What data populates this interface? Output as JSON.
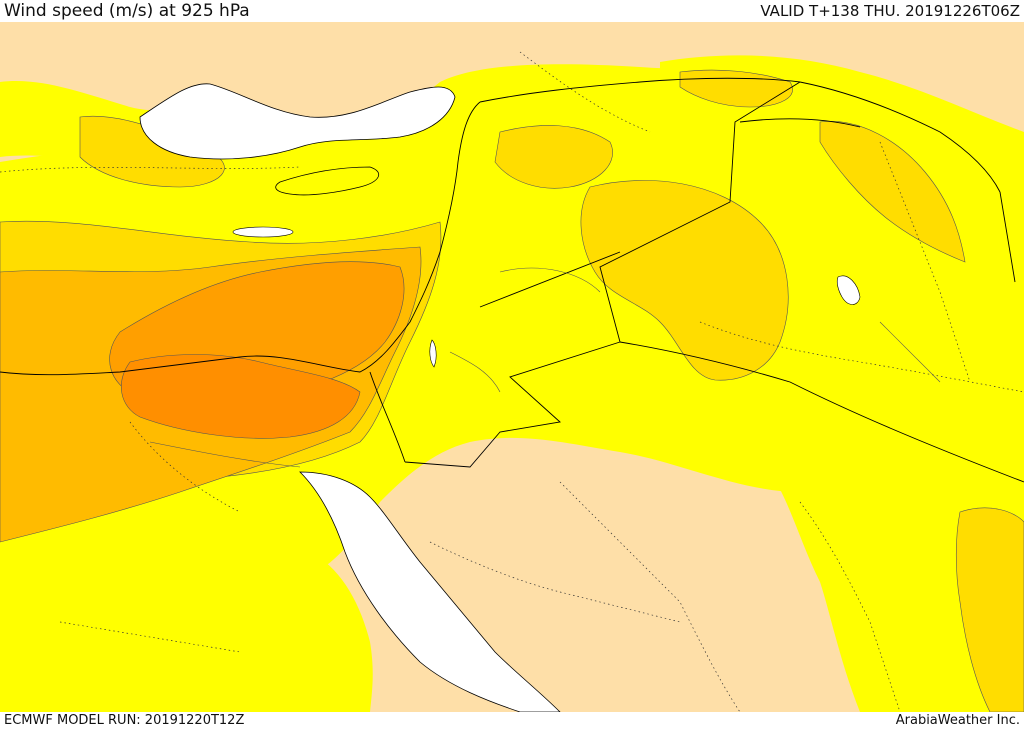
{
  "header": {
    "title": "Wind speed (m/s) at 925 hPa",
    "valid": "VALID T+138 THU. 20191226T06Z"
  },
  "footer": {
    "model_run": "ECMWF MODEL RUN: 20191220T12Z",
    "credit": "ArabiaWeather Inc."
  },
  "map": {
    "region": "Middle East / Eastern Mediterranean",
    "colors": {
      "sea_white": "#ffffff",
      "calm_beige": "#fedfa8",
      "light_yellow": "#ffff00",
      "gold": "#ffdd00",
      "amber": "#ffbb00",
      "orange": "#ff9f00",
      "dark_orange": "#ff8000"
    }
  }
}
